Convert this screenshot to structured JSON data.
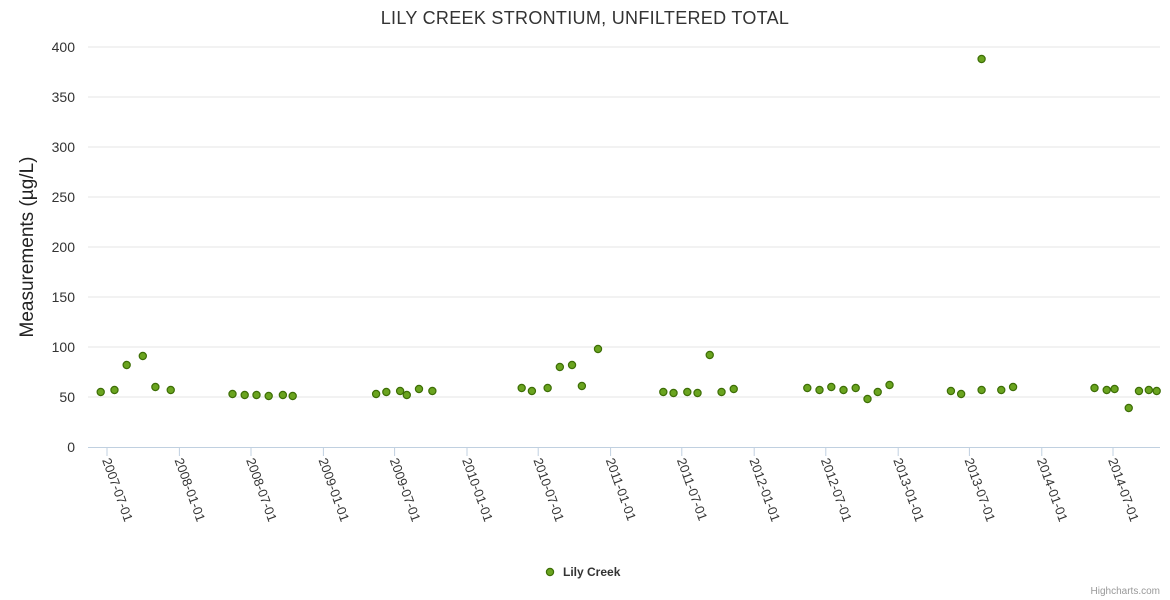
{
  "chart_data": {
    "type": "scatter",
    "title": "LILY CREEK STRONTIUM, UNFILTERED TOTAL",
    "xlabel": "",
    "ylabel": "Measurements (µg/L)",
    "x_axis_type": "date",
    "xlim": [
      "2007-06-15",
      "2014-10-20"
    ],
    "ylim": [
      0,
      400
    ],
    "yticks": [
      0,
      50,
      100,
      150,
      200,
      250,
      300,
      350,
      400
    ],
    "xticks": [
      "2007-07-01",
      "2008-01-01",
      "2008-07-01",
      "2009-01-01",
      "2009-07-01",
      "2010-01-01",
      "2010-07-01",
      "2011-01-01",
      "2011-07-01",
      "2012-01-01",
      "2012-07-01",
      "2013-01-01",
      "2013-07-01",
      "2014-01-01",
      "2014-07-01"
    ],
    "grid": "horizontal",
    "legend": "bottom-center",
    "series": [
      {
        "name": "Lily Creek",
        "color": "#6aa41f",
        "points": [
          {
            "x": "2007-06-15",
            "y": 55
          },
          {
            "x": "2007-07-20",
            "y": 57
          },
          {
            "x": "2007-08-20",
            "y": 82
          },
          {
            "x": "2007-09-30",
            "y": 91
          },
          {
            "x": "2007-11-01",
            "y": 60
          },
          {
            "x": "2007-12-10",
            "y": 57
          },
          {
            "x": "2008-05-15",
            "y": 53
          },
          {
            "x": "2008-06-15",
            "y": 52
          },
          {
            "x": "2008-07-15",
            "y": 52
          },
          {
            "x": "2008-08-15",
            "y": 51
          },
          {
            "x": "2008-09-20",
            "y": 52
          },
          {
            "x": "2008-10-15",
            "y": 51
          },
          {
            "x": "2009-05-15",
            "y": 53
          },
          {
            "x": "2009-06-10",
            "y": 55
          },
          {
            "x": "2009-07-15",
            "y": 56
          },
          {
            "x": "2009-08-01",
            "y": 52
          },
          {
            "x": "2009-09-01",
            "y": 58
          },
          {
            "x": "2009-10-05",
            "y": 56
          },
          {
            "x": "2010-05-20",
            "y": 59
          },
          {
            "x": "2010-06-15",
            "y": 56
          },
          {
            "x": "2010-07-25",
            "y": 59
          },
          {
            "x": "2010-08-25",
            "y": 80
          },
          {
            "x": "2010-09-25",
            "y": 82
          },
          {
            "x": "2010-10-20",
            "y": 61
          },
          {
            "x": "2010-11-30",
            "y": 98
          },
          {
            "x": "2011-05-15",
            "y": 55
          },
          {
            "x": "2011-06-10",
            "y": 54
          },
          {
            "x": "2011-07-15",
            "y": 55
          },
          {
            "x": "2011-08-10",
            "y": 54
          },
          {
            "x": "2011-09-10",
            "y": 92
          },
          {
            "x": "2011-10-10",
            "y": 55
          },
          {
            "x": "2011-11-10",
            "y": 58
          },
          {
            "x": "2012-05-15",
            "y": 59
          },
          {
            "x": "2012-06-15",
            "y": 57
          },
          {
            "x": "2012-07-15",
            "y": 60
          },
          {
            "x": "2012-08-15",
            "y": 57
          },
          {
            "x": "2012-09-15",
            "y": 59
          },
          {
            "x": "2012-10-15",
            "y": 48
          },
          {
            "x": "2012-11-10",
            "y": 55
          },
          {
            "x": "2012-12-10",
            "y": 62
          },
          {
            "x": "2013-05-15",
            "y": 56
          },
          {
            "x": "2013-06-10",
            "y": 53
          },
          {
            "x": "2013-08-01",
            "y": 388
          },
          {
            "x": "2013-08-01",
            "y": 57
          },
          {
            "x": "2013-09-20",
            "y": 57
          },
          {
            "x": "2013-10-20",
            "y": 60
          },
          {
            "x": "2014-05-15",
            "y": 59
          },
          {
            "x": "2014-06-15",
            "y": 57
          },
          {
            "x": "2014-07-05",
            "y": 58
          },
          {
            "x": "2014-08-10",
            "y": 39
          },
          {
            "x": "2014-09-05",
            "y": 56
          },
          {
            "x": "2014-09-30",
            "y": 57
          },
          {
            "x": "2014-10-20",
            "y": 56
          }
        ]
      }
    ]
  },
  "credits": "Highcharts.com"
}
